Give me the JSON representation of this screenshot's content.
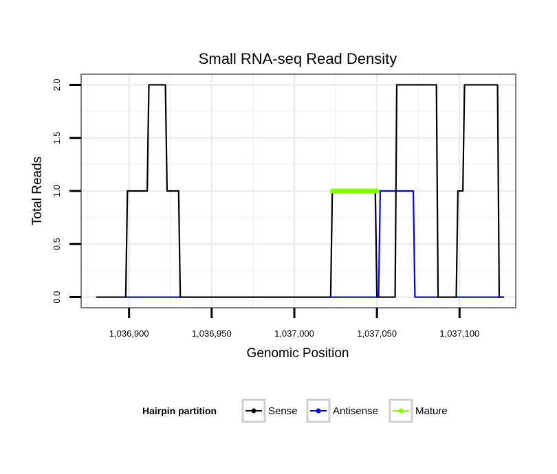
{
  "chart_data": {
    "type": "line",
    "title": "Small RNA-seq Read Density",
    "xlabel": "Genomic Position",
    "ylabel": "Total Reads",
    "xlim": [
      1036871,
      1037134
    ],
    "ylim": [
      -0.1,
      2.1
    ],
    "x_ticks": [
      1036900,
      1036950,
      1037000,
      1037050,
      1037100
    ],
    "x_tick_labels": [
      "1,036,900",
      "1,036,950",
      "1,037,000",
      "1,037,050",
      "1,037,100"
    ],
    "y_ticks": [
      0,
      0.5,
      1,
      1.5,
      2
    ],
    "y_tick_labels": [
      "0.0",
      "0.5",
      "1.0",
      "1.5",
      "2.0"
    ],
    "grid": true,
    "legend": {
      "title": "Hairpin partition",
      "position": "bottom"
    },
    "series": [
      {
        "name": "Sense",
        "color": "#000000",
        "x": [
          1036880,
          1036898,
          1036899,
          1036911,
          1036912,
          1036922,
          1036923,
          1036930,
          1036931,
          1037022,
          1037023,
          1037049,
          1037050,
          1037061,
          1037062,
          1037086,
          1037087,
          1037098,
          1037099,
          1037102,
          1037103,
          1037123,
          1037124,
          1037127
        ],
        "values": [
          0,
          0,
          1,
          1,
          2,
          2,
          1,
          1,
          0,
          0,
          1,
          1,
          0,
          0,
          2,
          2,
          0,
          0,
          1,
          1,
          2,
          2,
          0,
          0
        ]
      },
      {
        "name": "Antisense",
        "color": "#0000ff",
        "x": [
          1036898,
          1036931,
          1037051,
          1037052,
          1037072,
          1037073,
          1037125
        ],
        "values": [
          0,
          0,
          0,
          1,
          1,
          0,
          0
        ]
      },
      {
        "name": "Mature",
        "color": "#7fff00",
        "x": [
          1037023,
          1037050
        ],
        "values": [
          1,
          1
        ]
      }
    ]
  }
}
